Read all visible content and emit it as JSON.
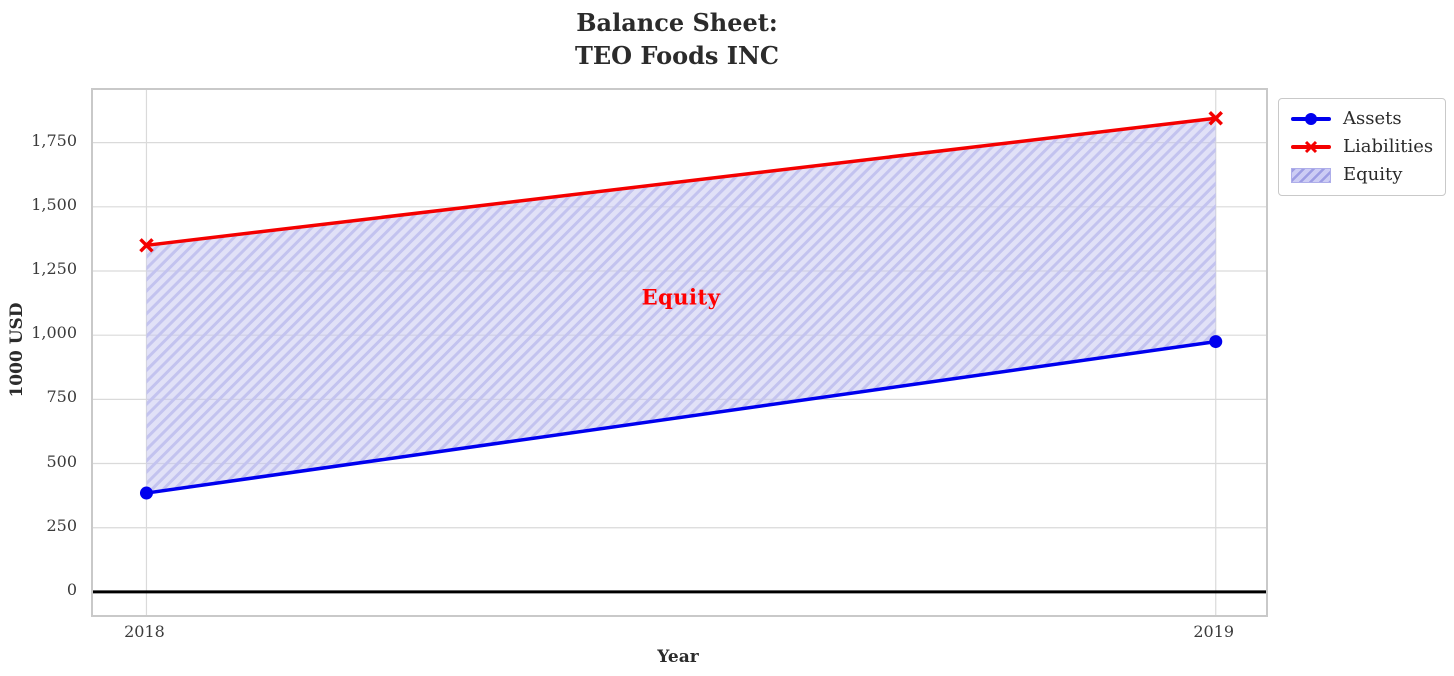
{
  "title": {
    "line1": "Balance Sheet:",
    "line2": "TEO Foods INC"
  },
  "axes": {
    "xlabel": "Year",
    "ylabel": "1000 USD"
  },
  "annotation": {
    "label": "Equity",
    "color": "#ff0000"
  },
  "legend": {
    "items": [
      "Assets",
      "Liabilities",
      "Equity"
    ]
  },
  "chart_data": {
    "type": "line",
    "title": "Balance Sheet:\nTEO Foods INC",
    "x": [
      2018,
      2019
    ],
    "series": [
      {
        "name": "Assets",
        "values": [
          385,
          975
        ],
        "color": "#0000ee",
        "marker": "circle"
      },
      {
        "name": "Liabilities",
        "values": [
          1350,
          1845
        ],
        "color": "#f40000",
        "marker": "x"
      }
    ],
    "fill_between": {
      "name": "Equity",
      "between": [
        "Assets",
        "Liabilities"
      ],
      "facecolor": "#c4c4f0",
      "face_opacity": 0.5,
      "hatch": "/",
      "hatch_color": "#c3c3ef",
      "label_x": 2018.5,
      "label_y": 1150
    },
    "xlabel": "Year",
    "ylabel": "1000 USD",
    "xlim": [
      2017.95,
      2019.047
    ],
    "ylim": [
      -90,
      1955
    ],
    "xticks": [
      2018,
      2019
    ],
    "xtick_labels": [
      "2018",
      "2019"
    ],
    "yticks": [
      0,
      250,
      500,
      750,
      1000,
      1250,
      1500,
      1750
    ],
    "ytick_labels": [
      "0",
      "250",
      "500",
      "750",
      "1,000",
      "1,250",
      "1,500",
      "1,750"
    ],
    "grid": true,
    "grid_color": "#dadada",
    "zero_line": true,
    "zero_line_color": "#000000",
    "legend_position": "outside upper right"
  }
}
